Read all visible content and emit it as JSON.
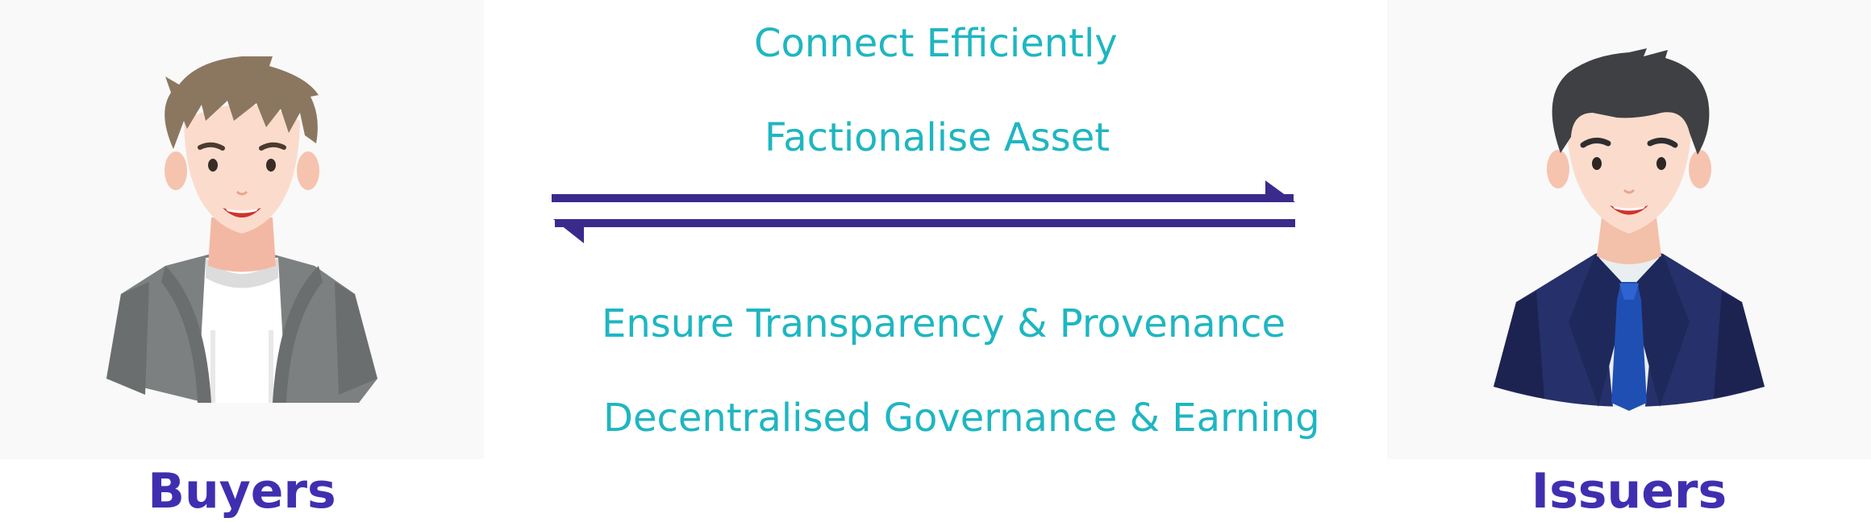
{
  "labels": {
    "buyers": "Buyers",
    "issuers": "Issuers"
  },
  "benefits": [
    "Connect Efficiently",
    "Factionalise Asset",
    "Ensure Transparency & Provenance",
    "Decentralised Governance & Earning"
  ],
  "icons": {
    "buyer": "casual-young-man-avatar-icon",
    "issuer": "businessman-in-suit-avatar-icon",
    "exchange": "two-way-exchange-arrows-icon"
  },
  "colors": {
    "label": "#3f2fb0",
    "benefit_text": "#1fb6c1",
    "arrow": "#3a2a8c",
    "avatar_background": "#f9f9f9"
  }
}
